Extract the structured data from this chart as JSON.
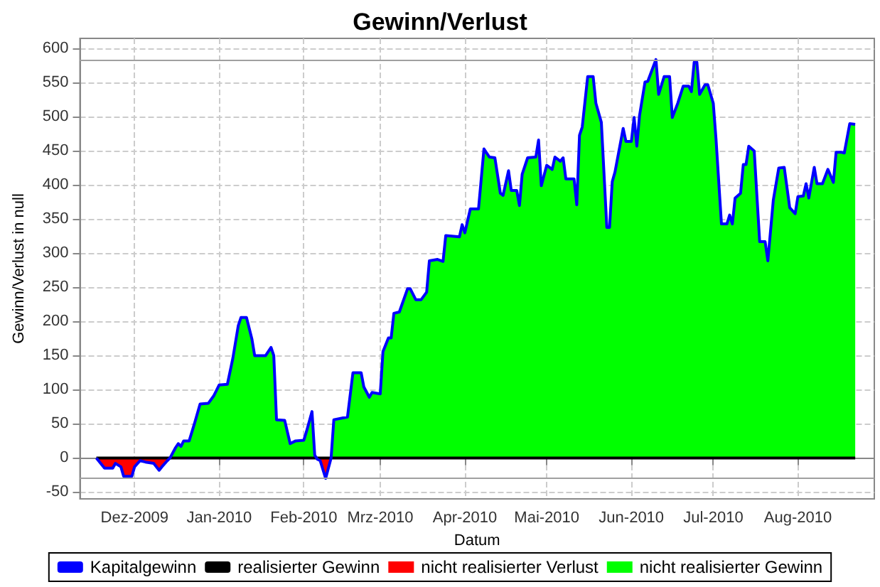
{
  "chart_data": {
    "type": "line",
    "title": "Gewinn/Verlust",
    "xlabel": "Datum",
    "ylabel": "Gewinn/Verlust in null",
    "x": [
      "2009-11-17",
      "2009-11-19",
      "2009-11-20",
      "2009-11-23",
      "2009-11-24",
      "2009-11-26",
      "2009-11-27",
      "2009-11-30",
      "2009-12-01",
      "2009-12-03",
      "2009-12-05",
      "2009-12-08",
      "2009-12-10",
      "2009-12-11",
      "2009-12-13",
      "2009-12-14",
      "2009-12-16",
      "2009-12-17",
      "2009-12-18",
      "2009-12-19",
      "2009-12-21",
      "2009-12-23",
      "2009-12-25",
      "2009-12-28",
      "2009-12-30",
      "2010-01-01",
      "2010-01-04",
      "2010-01-06",
      "2010-01-08",
      "2010-01-09",
      "2010-01-11",
      "2010-01-13",
      "2010-01-14",
      "2010-01-18",
      "2010-01-20",
      "2010-01-21",
      "2010-01-22",
      "2010-01-25",
      "2010-01-27",
      "2010-01-29",
      "2010-02-01",
      "2010-02-02",
      "2010-02-04",
      "2010-02-05",
      "2010-02-06",
      "2010-02-07",
      "2010-02-09",
      "2010-02-11",
      "2010-02-12",
      "2010-02-17",
      "2010-02-19",
      "2010-02-22",
      "2010-02-23",
      "2010-02-25",
      "2010-02-26",
      "2010-03-01",
      "2010-03-02",
      "2010-03-04",
      "2010-03-05",
      "2010-03-06",
      "2010-03-08",
      "2010-03-11",
      "2010-03-12",
      "2010-03-14",
      "2010-03-16",
      "2010-03-18",
      "2010-03-19",
      "2010-03-22",
      "2010-03-24",
      "2010-03-25",
      "2010-03-30",
      "2010-03-31",
      "2010-04-01",
      "2010-04-03",
      "2010-04-06",
      "2010-04-08",
      "2010-04-10",
      "2010-04-12",
      "2010-04-14",
      "2010-04-15",
      "2010-04-17",
      "2010-04-18",
      "2010-04-20",
      "2010-04-21",
      "2010-04-22",
      "2010-04-24",
      "2010-04-27",
      "2010-04-28",
      "2010-04-29",
      "2010-05-01",
      "2010-05-03",
      "2010-05-04",
      "2010-05-06",
      "2010-05-07",
      "2010-05-08",
      "2010-05-11",
      "2010-05-12",
      "2010-05-13",
      "2010-05-14",
      "2010-05-16",
      "2010-05-18",
      "2010-05-19",
      "2010-05-21",
      "2010-05-23",
      "2010-05-24",
      "2010-05-25",
      "2010-05-26",
      "2010-05-29",
      "2010-05-30",
      "2010-06-01",
      "2010-06-02",
      "2010-06-03",
      "2010-06-04",
      "2010-06-06",
      "2010-06-07",
      "2010-06-10",
      "2010-06-11",
      "2010-06-13",
      "2010-06-15",
      "2010-06-16",
      "2010-06-18",
      "2010-06-20",
      "2010-06-22",
      "2010-06-23",
      "2010-06-24",
      "2010-06-25",
      "2010-06-26",
      "2010-06-28",
      "2010-06-29",
      "2010-07-01",
      "2010-07-02",
      "2010-07-04",
      "2010-07-06",
      "2010-07-07",
      "2010-07-08",
      "2010-07-09",
      "2010-07-11",
      "2010-07-12",
      "2010-07-13",
      "2010-07-14",
      "2010-07-16",
      "2010-07-18",
      "2010-07-20",
      "2010-07-21",
      "2010-07-23",
      "2010-07-25",
      "2010-07-27",
      "2010-07-29",
      "2010-07-31",
      "2010-08-01",
      "2010-08-03",
      "2010-08-04",
      "2010-08-05",
      "2010-08-07",
      "2010-08-08",
      "2010-08-10",
      "2010-08-12",
      "2010-08-14",
      "2010-08-15",
      "2010-08-17",
      "2010-08-18",
      "2010-08-20",
      "2010-08-22"
    ],
    "series": [
      {
        "name": "nicht realisierter Gewinn",
        "type": "area",
        "color": "#00ff00",
        "values": [
          0,
          0,
          0,
          0,
          0,
          0,
          0,
          0,
          0,
          0,
          0,
          0,
          0,
          0,
          0,
          0,
          15,
          21,
          17,
          25,
          25,
          51,
          79,
          80,
          91,
          107,
          108,
          146,
          194,
          206,
          206,
          174,
          150,
          150,
          162,
          150,
          56,
          55,
          21,
          25,
          26,
          39,
          68,
          4,
          0,
          0,
          0,
          0,
          56,
          60,
          125,
          125,
          104,
          89,
          96,
          94,
          156,
          176,
          176,
          212,
          214,
          248,
          248,
          232,
          232,
          243,
          289,
          291,
          288,
          326,
          324,
          342,
          330,
          365,
          365,
          453,
          441,
          440,
          388,
          385,
          421,
          392,
          392,
          370,
          416,
          440,
          441,
          466,
          399,
          429,
          423,
          441,
          435,
          440,
          409,
          409,
          371,
          473,
          485,
          559,
          559,
          520,
          492,
          338,
          338,
          405,
          419,
          483,
          464,
          464,
          499,
          457,
          502,
          551,
          552,
          584,
          533,
          559,
          559,
          499,
          520,
          545,
          545,
          537,
          580,
          580,
          533,
          547,
          547,
          520,
          468,
          343,
          343,
          356,
          343,
          381,
          388,
          430,
          430,
          457,
          450,
          317,
          317,
          289,
          378,
          425,
          426,
          367,
          358,
          383,
          384,
          402,
          381,
          426,
          402,
          402,
          423,
          404,
          448,
          448,
          447,
          490,
          489
        ]
      },
      {
        "name": "nicht realisierter Verlust",
        "type": "area",
        "color": "#ff0000",
        "x": [
          "2009-11-17",
          "2009-11-19",
          "2009-11-20",
          "2009-11-23",
          "2009-11-24",
          "2009-11-26",
          "2009-11-27",
          "2009-11-30",
          "2009-12-01",
          "2009-12-03",
          "2009-12-05",
          "2009-12-08",
          "2009-12-10",
          "2009-12-11",
          "2009-12-13",
          "2009-12-14",
          "2010-02-05",
          "2010-02-06",
          "2010-02-07",
          "2010-02-09",
          "2010-02-11"
        ],
        "values": [
          0,
          -10,
          -15,
          -15,
          -8,
          -13,
          -27,
          -27,
          -13,
          -4,
          -6,
          -8,
          -18,
          -13,
          -4,
          0,
          0,
          -2,
          -4,
          -30,
          0
        ]
      },
      {
        "name": "realisierter Gewinn",
        "color": "#000000",
        "x": [
          "2009-11-17",
          "2010-08-22"
        ],
        "values": [
          0,
          0
        ]
      },
      {
        "name": "Kapitalgewinn",
        "color": "#0000ff",
        "values": [
          0,
          -10,
          -15,
          -15,
          -8,
          -13,
          -27,
          -27,
          -13,
          -4,
          -6,
          -8,
          -18,
          -13,
          -4,
          0,
          15,
          21,
          17,
          25,
          25,
          51,
          79,
          80,
          91,
          107,
          108,
          146,
          194,
          206,
          206,
          174,
          150,
          150,
          162,
          150,
          56,
          55,
          21,
          25,
          26,
          39,
          68,
          4,
          -2,
          -4,
          -30,
          0,
          56,
          60,
          125,
          125,
          104,
          89,
          96,
          94,
          156,
          176,
          176,
          212,
          214,
          248,
          248,
          232,
          232,
          243,
          289,
          291,
          288,
          326,
          324,
          342,
          330,
          365,
          365,
          453,
          441,
          440,
          388,
          385,
          421,
          392,
          392,
          370,
          416,
          440,
          441,
          466,
          399,
          429,
          423,
          441,
          435,
          440,
          409,
          409,
          371,
          473,
          485,
          559,
          559,
          520,
          492,
          338,
          338,
          405,
          419,
          483,
          464,
          464,
          499,
          457,
          502,
          551,
          552,
          584,
          533,
          559,
          559,
          499,
          520,
          545,
          545,
          537,
          580,
          580,
          533,
          547,
          547,
          520,
          468,
          343,
          343,
          356,
          343,
          381,
          388,
          430,
          430,
          457,
          450,
          317,
          317,
          289,
          378,
          425,
          426,
          367,
          358,
          383,
          384,
          402,
          381,
          426,
          402,
          402,
          423,
          404,
          448,
          448,
          447,
          490,
          489
        ]
      }
    ],
    "xlim": [
      "2009-11-11",
      "2010-08-29"
    ],
    "xticks": [
      {
        "value": "2009-12-01",
        "label": "Dez-2009"
      },
      {
        "value": "2010-01-01",
        "label": "Jan-2010"
      },
      {
        "value": "2010-02-01",
        "label": "Feb-2010"
      },
      {
        "value": "2010-03-01",
        "label": "Mrz-2010"
      },
      {
        "value": "2010-04-01",
        "label": "Apr-2010"
      },
      {
        "value": "2010-05-01",
        "label": "Mai-2010"
      },
      {
        "value": "2010-06-01",
        "label": "Jun-2010"
      },
      {
        "value": "2010-07-01",
        "label": "Jul-2010"
      },
      {
        "value": "2010-08-01",
        "label": "Aug-2010"
      }
    ],
    "ylim": [
      -60,
      615
    ],
    "yticks": [
      -50,
      0,
      50,
      100,
      150,
      200,
      250,
      300,
      350,
      400,
      450,
      500,
      550,
      600
    ],
    "ref_lines": [
      {
        "axis": "y",
        "value": 584,
        "color": "#a0a0a0"
      },
      {
        "axis": "y",
        "value": -30,
        "color": "#a0a0a0"
      }
    ],
    "grid": true,
    "legend": "bottom",
    "marker": "none"
  }
}
